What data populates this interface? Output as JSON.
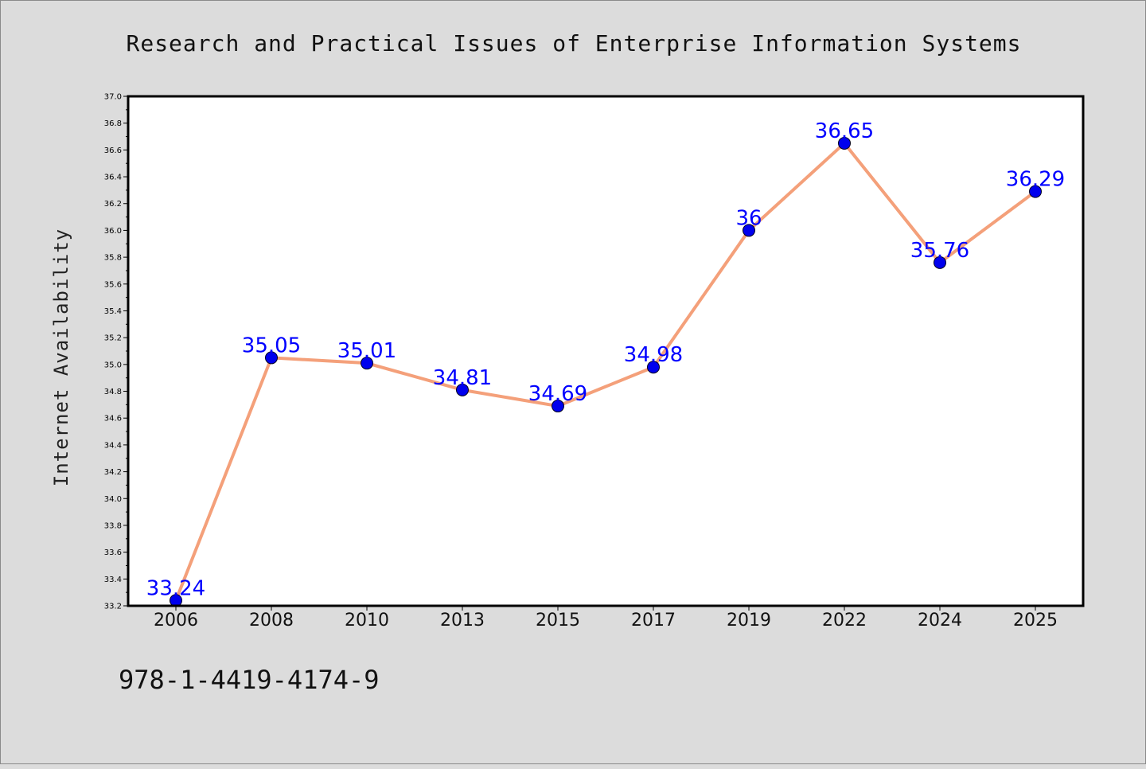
{
  "chart_data": {
    "type": "line",
    "title": "Research and Practical Issues of Enterprise Information Systems",
    "xlabel": "",
    "ylabel": "Internet Availability",
    "categories": [
      "2006",
      "2008",
      "2010",
      "2013",
      "2015",
      "2017",
      "2019",
      "2022",
      "2024",
      "2025"
    ],
    "series": [
      {
        "values": [
          33.24,
          35.05,
          35.01,
          34.81,
          34.69,
          34.98,
          36.0,
          36.65,
          35.76,
          36.29
        ],
        "labels": [
          "33.24",
          "35.05",
          "35.01",
          "34.81",
          "34.69",
          "34.98",
          "36",
          "36.65",
          "35.76",
          "36.29"
        ],
        "line_color": "#f4a07a",
        "marker_color": "#0000ee",
        "label_color": "#0000ff"
      }
    ],
    "ylim": [
      33.2,
      37.0
    ],
    "yticks": [
      "33.2",
      "33.4",
      "33.6",
      "33.8",
      "34.0",
      "34.2",
      "34.4",
      "34.6",
      "34.8",
      "35.0",
      "35.2",
      "35.4",
      "35.6",
      "35.8",
      "36.0",
      "36.2",
      "36.4",
      "36.6",
      "36.8",
      "37.0"
    ],
    "grid": false,
    "legend": "none"
  },
  "footer_text": "978-1-4419-4174-9",
  "colors": {
    "background": "#dcdcdc",
    "plot_background": "#ffffff",
    "axes": "#000000"
  }
}
